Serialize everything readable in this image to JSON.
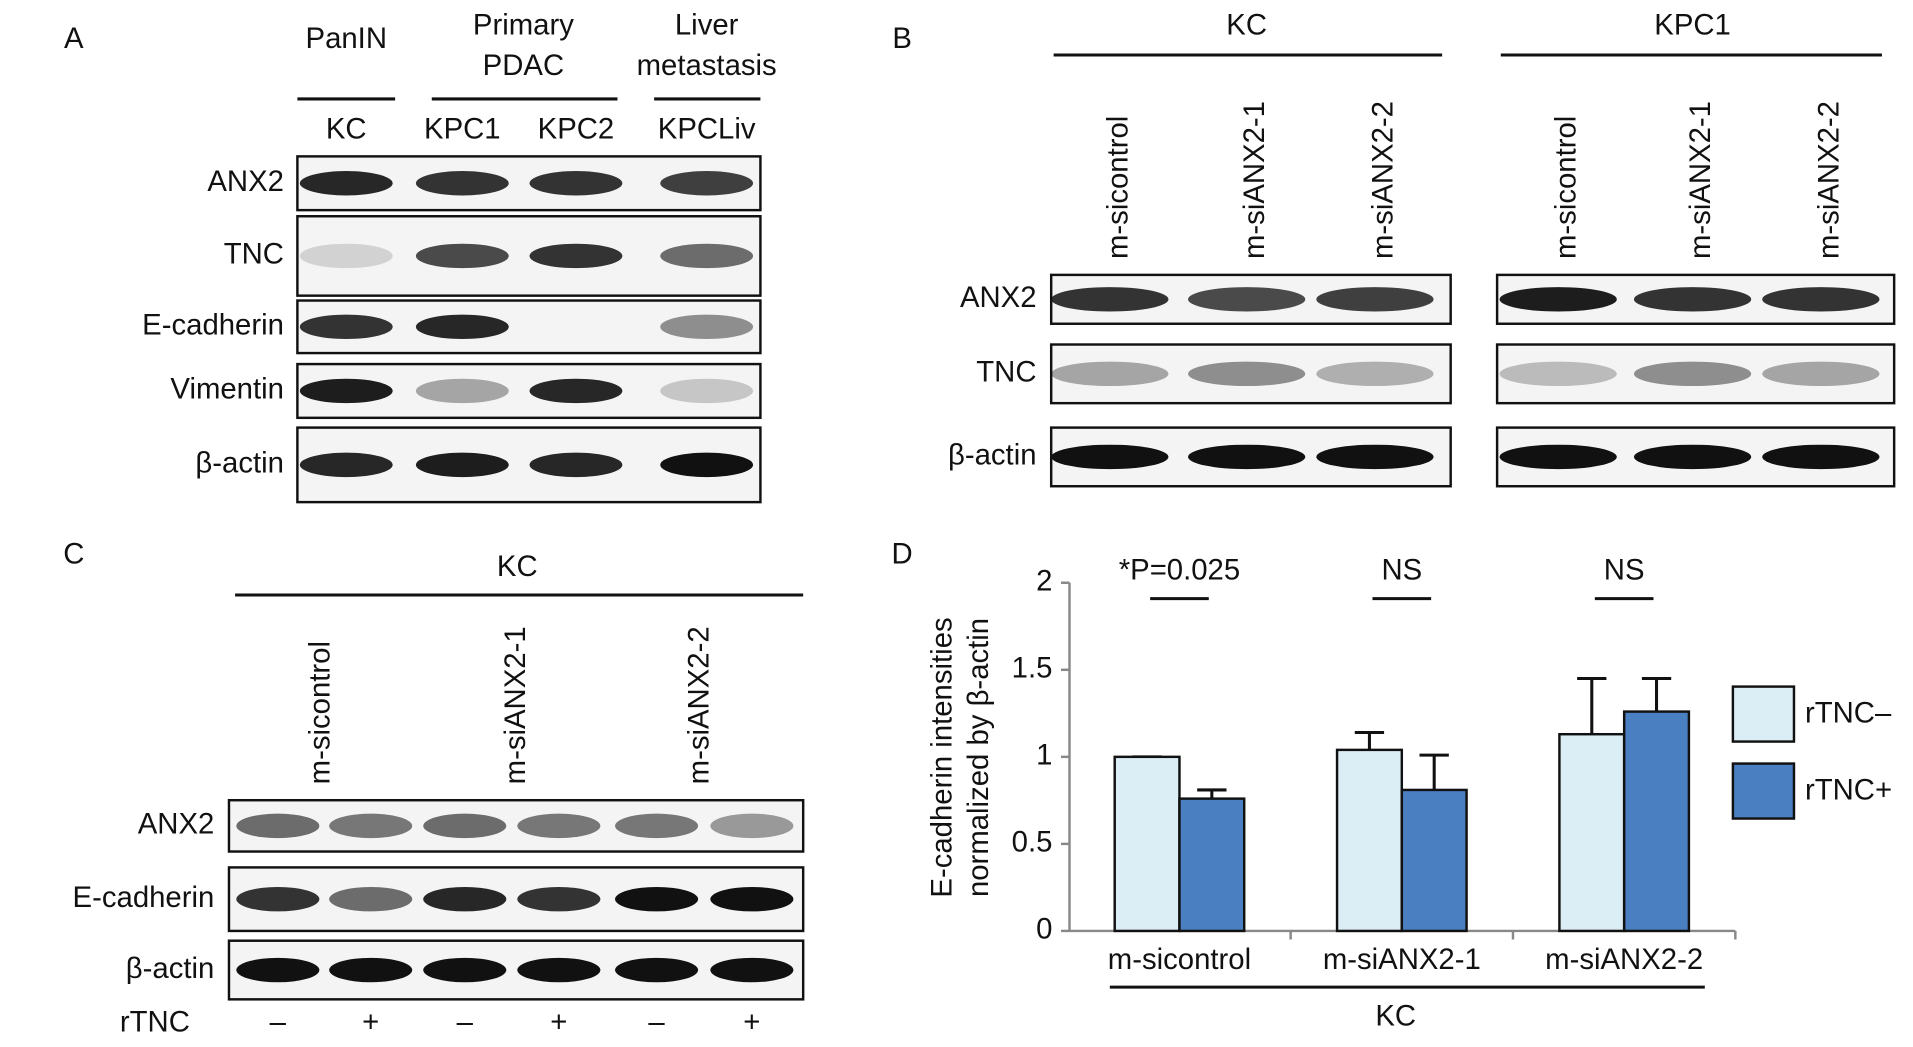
{
  "panel_a": {
    "letter": "A",
    "groups": [
      [
        "PanIN"
      ],
      [
        "Primary",
        "PDAC"
      ],
      [
        "Liver",
        "metastasis"
      ]
    ],
    "lanes": [
      "KC",
      "KPC1",
      "KPC2",
      "KPCLiv"
    ],
    "rows": [
      "ANX2",
      "TNC",
      "E-cadherin",
      "Vimentin",
      "β-actin"
    ]
  },
  "panel_b": {
    "letter": "B",
    "groups": [
      "KC",
      "KPC1"
    ],
    "lanes": [
      "m-sicontrol",
      "m-siANX2-1",
      "m-siANX2-2"
    ],
    "rows": [
      "ANX2",
      "TNC",
      "β-actin"
    ]
  },
  "panel_c": {
    "letter": "C",
    "group": "KC",
    "lanes": [
      "m-sicontrol",
      "m-siANX2-1",
      "m-siANX2-2"
    ],
    "rows": [
      "ANX2",
      "E-cadherin",
      "β-actin"
    ],
    "treatment_label": "rTNC",
    "treatment": [
      "–",
      "+",
      "–",
      "+",
      "–",
      "+"
    ]
  },
  "chart_data": {
    "type": "bar",
    "letter": "D",
    "y_label": [
      "E-cadherin intensities",
      "normalized by β-actin"
    ],
    "categories": [
      "m-sicontrol",
      "m-siANX2-1",
      "m-siANX2-2"
    ],
    "group_label": "KC",
    "annotations": [
      "*P=0.025",
      "NS",
      "NS"
    ],
    "series": [
      {
        "name": "rTNC–",
        "color": "#dceef5",
        "values": [
          1,
          1.04,
          1.13
        ],
        "errors": [
          0,
          0.1,
          0.32
        ]
      },
      {
        "name": "rTNC+",
        "color": "#4a7fc1",
        "values": [
          0.76,
          0.81,
          1.26
        ],
        "errors": [
          0.05,
          0.2,
          0.19
        ]
      }
    ],
    "ylim": [
      0,
      2
    ],
    "yticks": [
      0,
      0.5,
      1,
      1.5,
      2
    ]
  }
}
